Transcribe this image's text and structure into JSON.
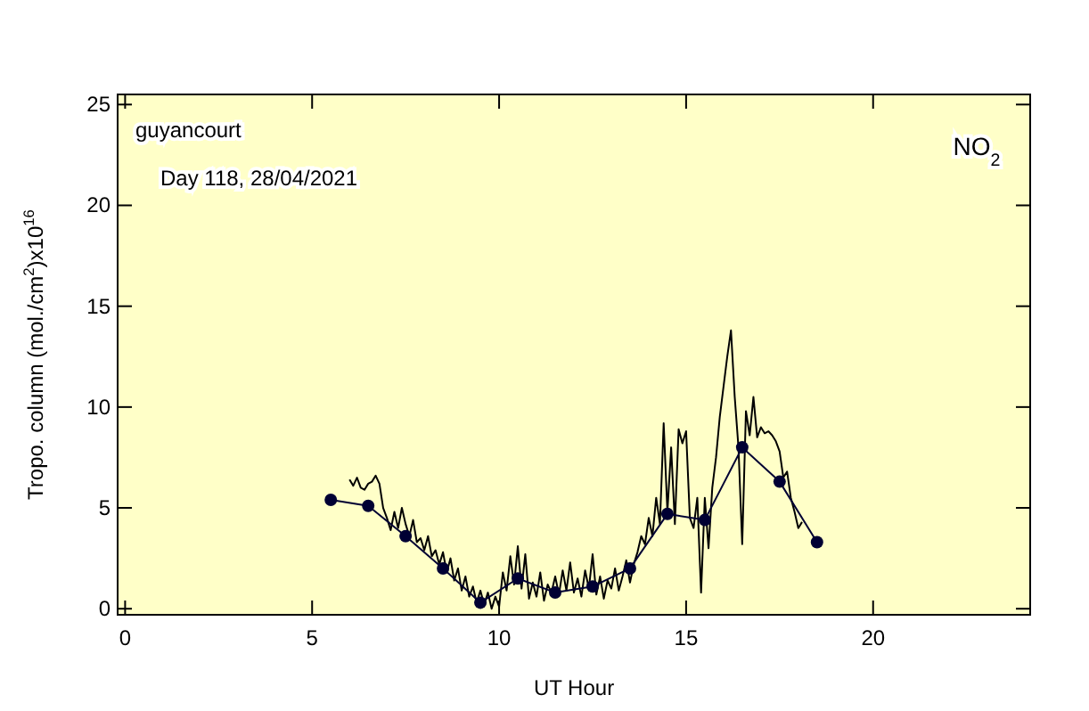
{
  "chart_data": {
    "type": "line",
    "xlabel": "UT Hour",
    "ylabel": "Tropo. column (mol./cm$^{2}$)x10$^{16}$",
    "annotations": [
      "guyancourt",
      "Day 118, 28/04/2021",
      "NO$_{2}$"
    ],
    "xlim": [
      -0.2,
      24.2
    ],
    "ylim": [
      -0.3,
      25.5
    ],
    "xticks": [
      0,
      5,
      10,
      15,
      20
    ],
    "yticks": [
      0,
      5,
      10,
      15,
      20,
      25
    ],
    "grid": false,
    "series": [
      {
        "color": "#000000",
        "marker": "none",
        "x": [
          6.0,
          6.1,
          6.2,
          6.3,
          6.4,
          6.5,
          6.6,
          6.7,
          6.8,
          6.9,
          7.0,
          7.1,
          7.2,
          7.3,
          7.4,
          7.5,
          7.6,
          7.7,
          7.8,
          7.9,
          8.0,
          8.1,
          8.2,
          8.3,
          8.4,
          8.5,
          8.6,
          8.7,
          8.8,
          8.9,
          9.0,
          9.1,
          9.2,
          9.3,
          9.4,
          9.5,
          9.6,
          9.7,
          9.8,
          9.9,
          10.0,
          10.1,
          10.2,
          10.3,
          10.4,
          10.5,
          10.6,
          10.7,
          10.8,
          10.9,
          11.0,
          11.1,
          11.2,
          11.3,
          11.4,
          11.5,
          11.6,
          11.7,
          11.8,
          11.9,
          12.0,
          12.1,
          12.2,
          12.3,
          12.4,
          12.5,
          12.6,
          12.7,
          12.8,
          12.9,
          13.0,
          13.1,
          13.2,
          13.3,
          13.4,
          13.5,
          13.6,
          13.7,
          13.8,
          13.9,
          14.0,
          14.1,
          14.2,
          14.3,
          14.4,
          14.5,
          14.6,
          14.7,
          14.8,
          14.9,
          15.0,
          15.1,
          15.2,
          15.3,
          15.4,
          15.5,
          15.6,
          15.7,
          15.8,
          15.9,
          16.0,
          16.1,
          16.2,
          16.3,
          16.4,
          16.5,
          16.6,
          16.7,
          16.8,
          16.9,
          17.0,
          17.1,
          17.2,
          17.3,
          17.4,
          17.5,
          17.6,
          17.7,
          17.8,
          17.9,
          18.0,
          18.1
        ],
        "values": [
          6.4,
          6.1,
          6.5,
          6.0,
          5.9,
          6.2,
          6.3,
          6.6,
          6.2,
          5.0,
          4.5,
          3.9,
          4.8,
          4.0,
          5.0,
          4.2,
          3.6,
          4.4,
          3.3,
          3.5,
          2.9,
          3.6,
          2.6,
          2.9,
          2.2,
          2.8,
          1.8,
          2.5,
          1.4,
          2.0,
          0.9,
          1.6,
          0.6,
          1.1,
          0.3,
          0.9,
          0.2,
          0.8,
          0.0,
          0.6,
          0.1,
          1.8,
          0.9,
          2.6,
          1.2,
          3.1,
          1.0,
          2.7,
          0.5,
          1.3,
          0.6,
          1.8,
          0.4,
          1.2,
          0.8,
          1.6,
          0.7,
          1.9,
          0.9,
          2.3,
          0.8,
          1.5,
          0.6,
          1.9,
          1.0,
          2.7,
          0.7,
          1.6,
          0.5,
          1.4,
          1.0,
          2.0,
          0.9,
          1.6,
          2.4,
          1.3,
          2.2,
          2.8,
          3.6,
          3.2,
          4.5,
          3.6,
          5.5,
          4.2,
          9.2,
          4.8,
          8.0,
          4.2,
          8.9,
          8.2,
          8.8,
          4.5,
          4.0,
          5.5,
          0.8,
          5.5,
          3.0,
          6.0,
          7.5,
          9.5,
          11.0,
          12.5,
          13.8,
          10.5,
          8.0,
          3.2,
          9.8,
          8.6,
          10.5,
          8.5,
          9.0,
          8.7,
          8.8,
          8.6,
          8.3,
          7.8,
          6.5,
          6.8,
          5.5,
          4.8,
          4.0,
          4.3
        ]
      },
      {
        "color": "#000033",
        "marker": "circle",
        "x": [
          5.5,
          6.5,
          7.5,
          8.5,
          9.5,
          10.5,
          11.5,
          12.5,
          13.5,
          14.5,
          15.5,
          16.5,
          17.5,
          18.5
        ],
        "values": [
          5.4,
          5.1,
          3.6,
          2.0,
          0.3,
          1.5,
          0.8,
          1.1,
          2.0,
          4.7,
          4.4,
          8.0,
          6.3,
          3.3
        ]
      }
    ]
  }
}
